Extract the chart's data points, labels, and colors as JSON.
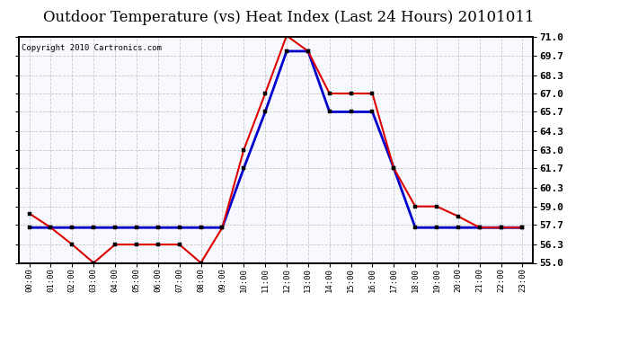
{
  "title": "Outdoor Temperature (vs) Heat Index (Last 24 Hours) 20101011",
  "copyright": "Copyright 2010 Cartronics.com",
  "hours": [
    "00:00",
    "01:00",
    "02:00",
    "03:00",
    "04:00",
    "05:00",
    "06:00",
    "07:00",
    "08:00",
    "09:00",
    "10:00",
    "11:00",
    "12:00",
    "13:00",
    "14:00",
    "15:00",
    "16:00",
    "17:00",
    "18:00",
    "19:00",
    "20:00",
    "21:00",
    "22:00",
    "23:00"
  ],
  "temp": [
    58.5,
    57.5,
    56.3,
    55.0,
    56.3,
    56.3,
    56.3,
    56.3,
    55.0,
    57.5,
    63.0,
    67.0,
    71.1,
    70.0,
    67.0,
    67.0,
    67.0,
    61.7,
    59.0,
    59.0,
    58.3,
    57.5,
    57.5,
    57.5
  ],
  "heat_index": [
    57.5,
    57.5,
    57.5,
    57.5,
    57.5,
    57.5,
    57.5,
    57.5,
    57.5,
    57.5,
    61.7,
    65.7,
    70.0,
    70.0,
    65.7,
    65.7,
    65.7,
    61.7,
    57.5,
    57.5,
    57.5,
    57.5,
    57.5,
    57.5
  ],
  "temp_color": "#dd0000",
  "heat_color": "#0000cc",
  "ylim": [
    55.0,
    71.0
  ],
  "ytick_values": [
    55.0,
    56.3,
    57.7,
    59.0,
    60.3,
    61.7,
    63.0,
    64.3,
    65.7,
    67.0,
    68.3,
    69.7,
    71.0
  ],
  "ytick_labels": [
    "55.0",
    "56.3",
    "57.7",
    "59.0",
    "60.3",
    "61.7",
    "63.0",
    "64.3",
    "65.7",
    "67.0",
    "68.3",
    "69.7",
    "71.0"
  ],
  "background_color": "#ffffff",
  "grid_color": "#bbbbbb",
  "title_fontsize": 12,
  "copyright_fontsize": 6.5,
  "plot_bg": "#f8f8ff"
}
